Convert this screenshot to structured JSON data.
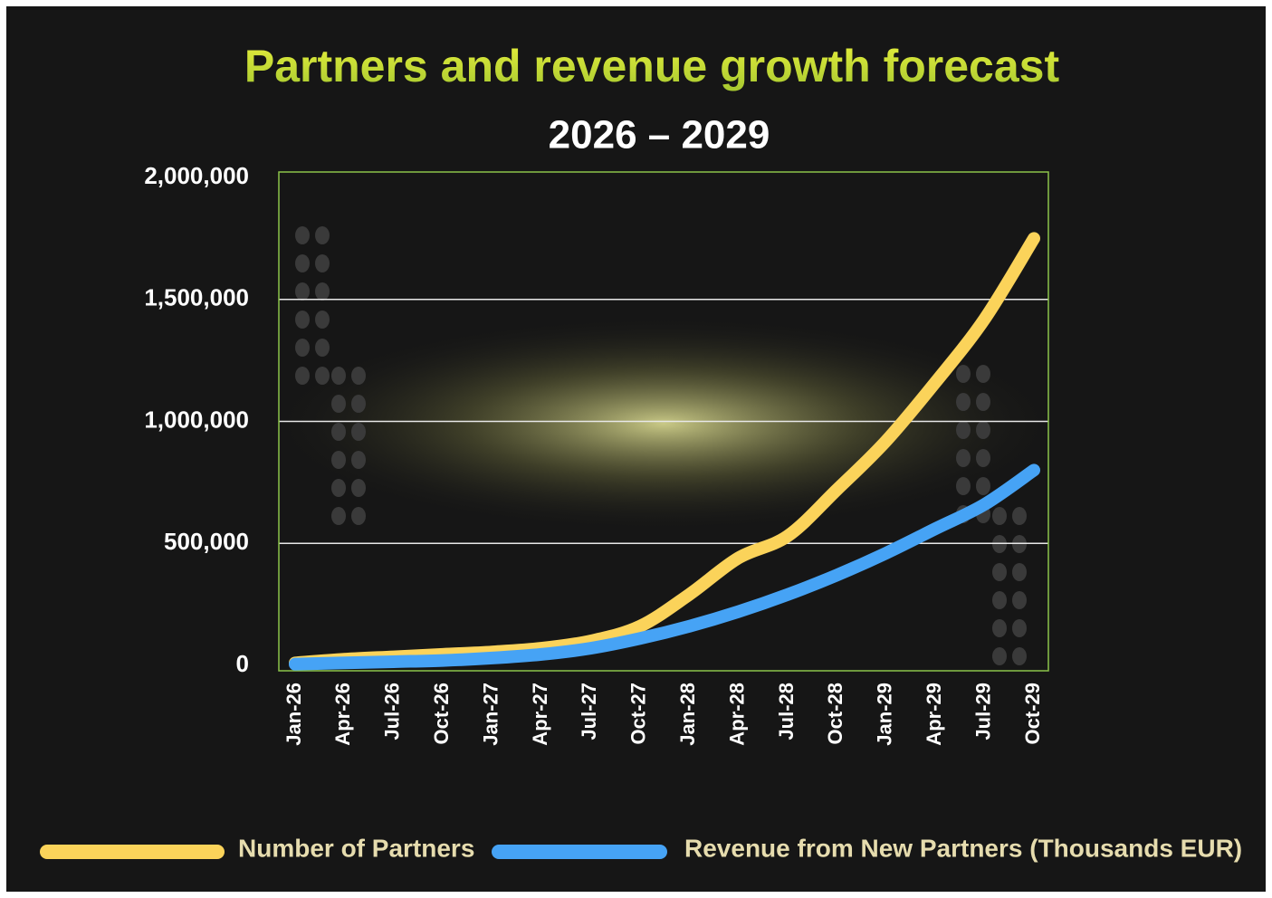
{
  "chart_data": {
    "type": "line",
    "title": "Partners and revenue growth forecast",
    "subtitle": "2026 – 2029",
    "categories": [
      "Jan-26",
      "Apr-26",
      "Jul-26",
      "Oct-26",
      "Jan-27",
      "Apr-27",
      "Jul-27",
      "Oct-27",
      "Jan-28",
      "Apr-28",
      "Jul-28",
      "Oct-28",
      "Jan-29",
      "Apr-29",
      "Jul-29",
      "Oct-29"
    ],
    "series": [
      {
        "name": "Number of Partners",
        "color": "#fbd35a",
        "values": [
          10000,
          25000,
          35000,
          45000,
          55000,
          70000,
          100000,
          160000,
          290000,
          440000,
          530000,
          720000,
          920000,
          1160000,
          1420000,
          1750000
        ]
      },
      {
        "name": "Revenue from New Partners (Thousands EUR)",
        "color": "#46a3f5",
        "values": [
          5000,
          10000,
          15000,
          20000,
          30000,
          45000,
          70000,
          110000,
          160000,
          220000,
          290000,
          370000,
          460000,
          560000,
          660000,
          800000
        ]
      }
    ],
    "ylim": [
      0,
      2000000
    ],
    "yticks": [
      0,
      {
        "value": 500000,
        "label": "500,000"
      },
      {
        "value": 1000000,
        "label": "1,000,000"
      },
      {
        "value": 1500000,
        "label": "1,500,000"
      },
      {
        "value": 2000000,
        "label": "2,000,000"
      }
    ],
    "grid": true
  }
}
